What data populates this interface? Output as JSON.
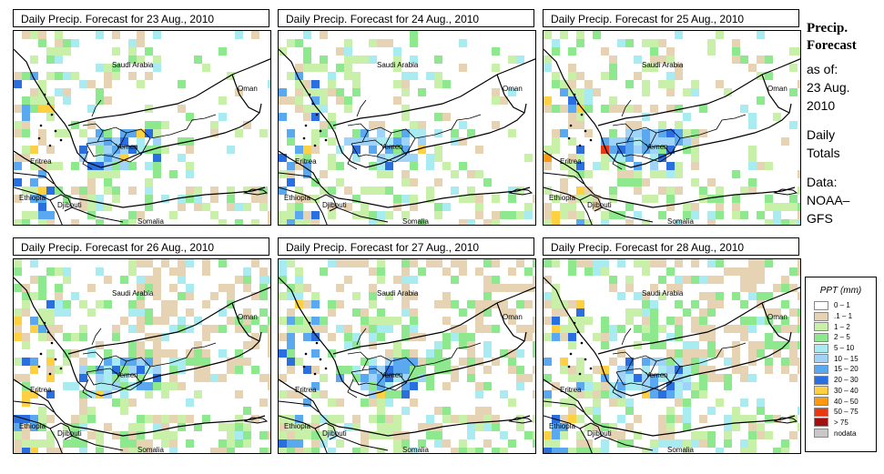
{
  "panels": [
    {
      "title": "Daily Precip. Forecast for  23 Aug., 2010"
    },
    {
      "title": "Daily Precip. Forecast for  24 Aug., 2010"
    },
    {
      "title": "Daily Precip. Forecast for  25 Aug., 2010"
    },
    {
      "title": "Daily Precip. Forecast for  26 Aug., 2010"
    },
    {
      "title": "Daily Precip. Forecast for  27 Aug., 2010"
    },
    {
      "title": "Daily Precip. Forecast for  28 Aug., 2010"
    }
  ],
  "map_labels": {
    "saudi": "Saudi Arabia",
    "oman": "Oman",
    "yemen": "Yemen",
    "eritrea": "Eritrea",
    "ethiopia": "Ethiopia",
    "djibouti": "Djibouti",
    "somalia": "Somalia"
  },
  "side": {
    "title1": "Precip.",
    "title2": "Forecast",
    "asof": "as of:",
    "date1": "23 Aug.",
    "date2": "2010",
    "daily1": "Daily",
    "daily2": "Totals",
    "data1": "Data:",
    "data2": "NOAA–",
    "data3": "GFS"
  },
  "legend": {
    "title": "PPT (mm)",
    "items": [
      {
        "label": "0 – 1",
        "color": "#ffffff"
      },
      {
        "label": ".1 – 1",
        "color": "#e6d3b3"
      },
      {
        "label": "1 – 2",
        "color": "#c8f0a8"
      },
      {
        "label": "2 – 5",
        "color": "#8ee88e"
      },
      {
        "label": "5 – 10",
        "color": "#a8ecf2"
      },
      {
        "label": "10 – 15",
        "color": "#9fd4f8"
      },
      {
        "label": "15 – 20",
        "color": "#5aa8f0"
      },
      {
        "label": "20 – 30",
        "color": "#2a6fe0"
      },
      {
        "label": "30 – 40",
        "color": "#ffd040"
      },
      {
        "label": "40 – 50",
        "color": "#ff9a10"
      },
      {
        "label": "50 – 75",
        "color": "#e83a10"
      },
      {
        "label": "> 75",
        "color": "#a01010"
      },
      {
        "label": "nodata",
        "color": "#c8c8c8"
      }
    ]
  }
}
